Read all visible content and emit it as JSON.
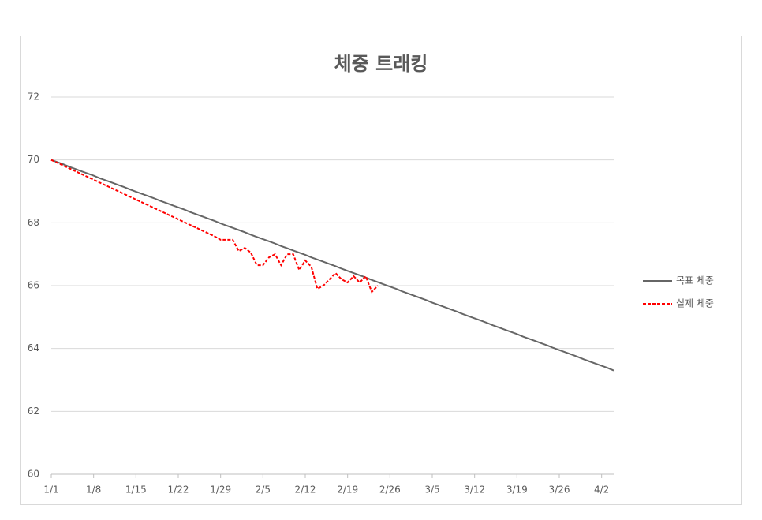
{
  "chart_data": {
    "type": "line",
    "title": "체중 트래킹",
    "categories": [
      "1/1",
      null,
      null,
      null,
      null,
      null,
      null,
      "1/8",
      null,
      null,
      null,
      null,
      null,
      null,
      "1/15",
      null,
      null,
      null,
      null,
      null,
      null,
      "1/22",
      null,
      null,
      null,
      null,
      null,
      null,
      "1/29",
      null,
      null,
      null,
      null,
      null,
      null,
      "2/5",
      null,
      null,
      null,
      null,
      null,
      null,
      "2/12",
      null,
      null,
      null,
      null,
      null,
      null,
      "2/19",
      null,
      null,
      null,
      null,
      null,
      null,
      "2/26",
      null,
      null,
      null,
      null,
      null,
      null,
      "3/5",
      null,
      null,
      null,
      null,
      null,
      null,
      "3/12",
      null,
      null,
      null,
      null,
      null,
      null,
      "3/19",
      null,
      null,
      null,
      null,
      null,
      null,
      "3/26",
      null,
      null,
      null,
      null,
      null,
      null,
      "4/2",
      null,
      null
    ],
    "series": [
      {
        "name": "목표 체중",
        "color": "#666666",
        "dash": false,
        "values": [
          70.0,
          69.93,
          69.86,
          69.78,
          69.71,
          69.64,
          69.57,
          69.5,
          69.42,
          69.35,
          69.28,
          69.21,
          69.14,
          69.06,
          68.99,
          68.92,
          68.85,
          68.78,
          68.7,
          68.63,
          68.56,
          68.49,
          68.42,
          68.34,
          68.27,
          68.2,
          68.13,
          68.06,
          67.98,
          67.91,
          67.84,
          67.77,
          67.7,
          67.62,
          67.55,
          67.48,
          67.41,
          67.34,
          67.26,
          67.19,
          67.12,
          67.05,
          66.98,
          66.9,
          66.83,
          66.76,
          66.69,
          66.62,
          66.54,
          66.47,
          66.4,
          66.33,
          66.26,
          66.18,
          66.11,
          66.04,
          65.97,
          65.9,
          65.82,
          65.75,
          65.68,
          65.61,
          65.54,
          65.46,
          65.39,
          65.32,
          65.25,
          65.18,
          65.1,
          65.03,
          64.96,
          64.89,
          64.82,
          64.74,
          64.67,
          64.6,
          64.53,
          64.46,
          64.38,
          64.31,
          64.24,
          64.17,
          64.1,
          64.02,
          63.95,
          63.88,
          63.81,
          63.74,
          63.66,
          63.59,
          63.52,
          63.45,
          63.38,
          63.3
        ]
      },
      {
        "name": "실제 체중",
        "color": "#ff0000",
        "dash": true,
        "values": [
          70,
          69.91,
          69.82,
          69.73,
          69.64,
          69.55,
          69.46,
          69.37,
          69.28,
          69.19,
          69.1,
          69.01,
          68.92,
          68.83,
          68.74,
          68.65,
          68.56,
          68.47,
          68.38,
          68.29,
          68.2,
          68.11,
          68.02,
          67.93,
          67.84,
          67.75,
          67.66,
          67.57,
          67.46,
          67.46,
          67.46,
          67.1,
          67.2,
          67.05,
          66.65,
          66.65,
          66.9,
          67.0,
          66.65,
          67.0,
          67.0,
          66.5,
          66.8,
          66.6,
          65.9,
          66.0,
          66.2,
          66.4,
          66.2,
          66.1,
          66.3,
          66.1,
          66.3,
          65.8,
          66.0,
          null,
          null,
          null,
          null,
          null,
          null,
          null,
          null,
          null,
          null,
          null,
          null,
          null,
          null,
          null,
          null,
          null,
          null,
          null,
          null,
          null,
          null,
          null,
          null,
          null,
          null,
          null,
          null,
          null,
          null,
          null,
          null,
          null,
          null,
          null,
          null,
          null,
          null,
          null
        ]
      }
    ],
    "ylim": [
      60,
      72
    ],
    "yticks": [
      60,
      62,
      64,
      66,
      68,
      70,
      72
    ],
    "grid": true,
    "legend": "right"
  }
}
